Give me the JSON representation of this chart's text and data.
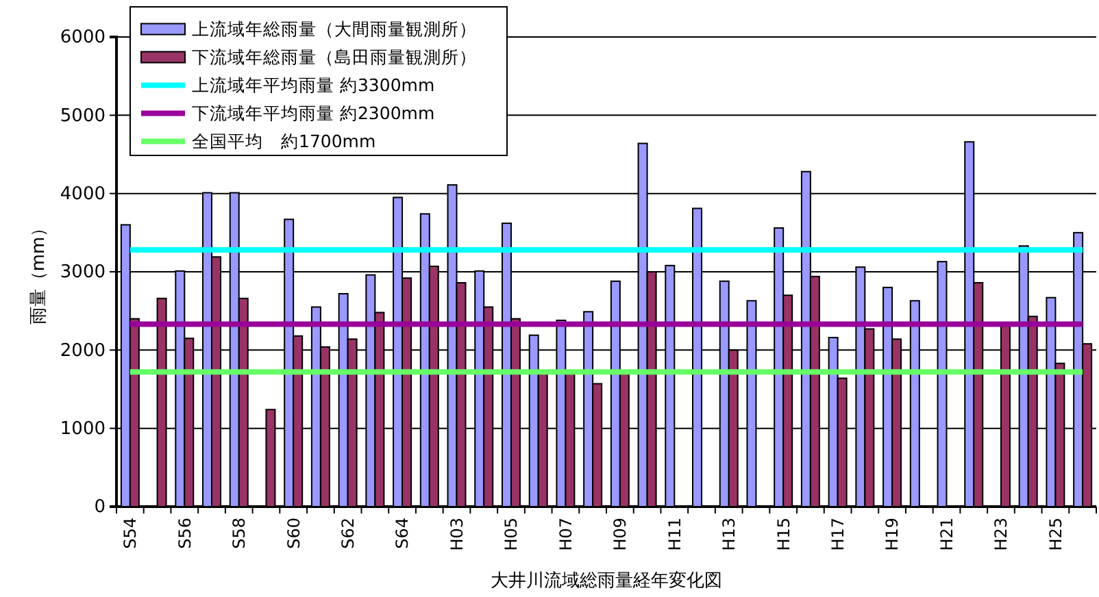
{
  "chart_data": {
    "type": "bar",
    "xlabel": "大井川流域総雨量経年変化図",
    "ylabel": "雨量（mm）",
    "categories": [
      "S54",
      null,
      "S56",
      null,
      "S58",
      null,
      "S60",
      null,
      "S62",
      null,
      "S64",
      null,
      "H03",
      null,
      "H05",
      null,
      "H07",
      null,
      "H09",
      null,
      "H11",
      null,
      "H13",
      null,
      "H15",
      null,
      "H17",
      null,
      "H19",
      null,
      "H21",
      null,
      "H23",
      null,
      "H25",
      null
    ],
    "series": [
      {
        "name": "上流域年総雨量（大間雨量観測所）",
        "color": "#9999ff",
        "values": [
          3600,
          null,
          3010,
          4010,
          4010,
          null,
          3670,
          2550,
          2720,
          2960,
          3950,
          3740,
          4110,
          3010,
          3620,
          2190,
          2380,
          2490,
          2880,
          4640,
          3080,
          3810,
          2880,
          2630,
          3560,
          4280,
          2160,
          3060,
          2800,
          2630,
          3130,
          4660,
          null,
          3330,
          2670,
          3500
        ]
      },
      {
        "name": "下流域年総雨量（島田雨量観測所）",
        "color": "#993366",
        "values": [
          2400,
          2660,
          2150,
          3190,
          2660,
          1240,
          2180,
          2040,
          2140,
          2480,
          2920,
          3070,
          2860,
          2550,
          2400,
          1700,
          1700,
          1570,
          1700,
          3000,
          null,
          null,
          2000,
          null,
          2700,
          2940,
          1640,
          2270,
          2140,
          null,
          null,
          2860,
          2330,
          2430,
          1830,
          2080
        ]
      },
      {
        "type": "line",
        "name": "上流域年平均雨量 約3300mm",
        "color": "#00ffff",
        "values": [
          3280,
          3280,
          3280,
          3280,
          3280,
          3280,
          3280,
          3280,
          3280,
          3280,
          3280,
          3280,
          3280,
          3280,
          3280,
          3280,
          3280,
          3280,
          3280,
          3280,
          3280,
          3280,
          3280,
          3280,
          3280,
          3280,
          3280,
          3280,
          3280,
          3280,
          3280,
          3280,
          3280,
          3280,
          3280,
          3280
        ]
      },
      {
        "type": "line",
        "name": "下流域年平均雨量 約2300mm",
        "color": "#990099",
        "values": [
          2330,
          2330,
          2330,
          2330,
          2330,
          2330,
          2330,
          2330,
          2330,
          2330,
          2330,
          2330,
          2330,
          2330,
          2330,
          2330,
          2330,
          2330,
          2330,
          2330,
          2330,
          2330,
          2330,
          2330,
          2330,
          2330,
          2330,
          2330,
          2330,
          2330,
          2330,
          2330,
          2330,
          2330,
          2330,
          2330
        ]
      },
      {
        "type": "line",
        "name": "全国平均　約1700mm",
        "color": "#66ff66",
        "values": [
          1720,
          1720,
          1720,
          1720,
          1720,
          1720,
          1720,
          1720,
          1720,
          1720,
          1720,
          1720,
          1720,
          1720,
          1720,
          1720,
          1720,
          1720,
          1720,
          1720,
          1720,
          1720,
          1720,
          1720,
          1720,
          1720,
          1720,
          1720,
          1720,
          1720,
          1720,
          1720,
          1720,
          1720,
          1720,
          1720
        ]
      }
    ],
    "ylim": [
      0,
      6000
    ],
    "yticks": [
      0,
      1000,
      2000,
      3000,
      4000,
      5000,
      6000
    ],
    "grid": "y",
    "legend": "top left",
    "marker": "none",
    "line_style": "solid"
  }
}
